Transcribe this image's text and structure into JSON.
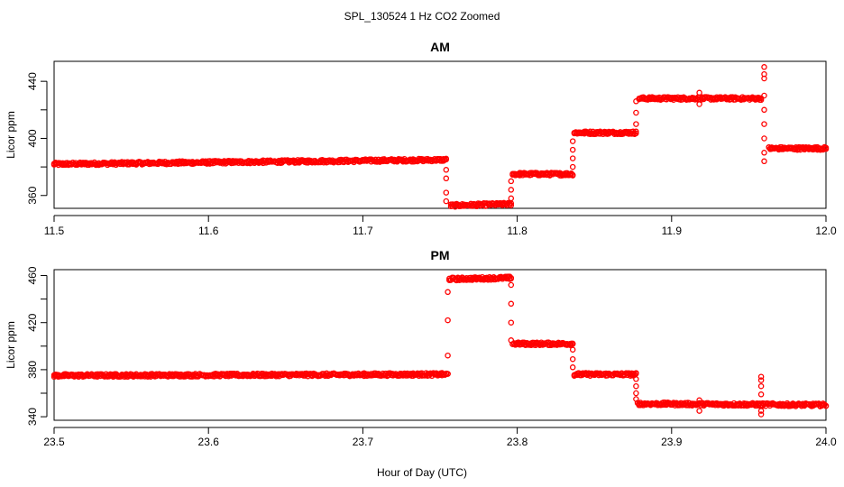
{
  "figure": {
    "title": "SPL_130524  1 Hz CO2 Zoomed",
    "xlabel": "Hour of Day (UTC)"
  },
  "chart_data": [
    {
      "type": "scatter",
      "title": "AM",
      "ylabel": "Licor ppm",
      "xlim": [
        11.5,
        12.0
      ],
      "ylim": [
        351,
        454
      ],
      "xticks": [
        "11.5",
        "11.6",
        "11.7",
        "11.8",
        "11.9",
        "12.0"
      ],
      "xtick_values": [
        11.5,
        11.6,
        11.7,
        11.8,
        11.9,
        12.0
      ],
      "yticks": [
        "360",
        "400",
        "440"
      ],
      "ytick_values": [
        360,
        400,
        440
      ],
      "marker": "open-circle",
      "color": "#ff0000",
      "levels": [
        {
          "x0": 11.5,
          "x1": 11.754,
          "y0": 382,
          "y1": 385
        },
        {
          "x0": 11.757,
          "x1": 11.796,
          "y0": 353,
          "y1": 354
        },
        {
          "x0": 11.797,
          "x1": 11.836,
          "y0": 375,
          "y1": 375
        },
        {
          "x0": 11.837,
          "x1": 11.877,
          "y0": 404,
          "y1": 404
        },
        {
          "x0": 11.879,
          "x1": 11.958,
          "y0": 428,
          "y1": 428
        },
        {
          "x0": 11.963,
          "x1": 12.0,
          "y0": 393,
          "y1": 393
        }
      ],
      "transitions": [
        {
          "x": 11.754,
          "y": [
            378,
            372,
            362,
            356
          ]
        },
        {
          "x": 11.796,
          "y": [
            358,
            364,
            370
          ]
        },
        {
          "x": 11.836,
          "y": [
            380,
            386,
            392,
            398
          ]
        },
        {
          "x": 11.877,
          "y": [
            410,
            418,
            426
          ]
        },
        {
          "x": 11.96,
          "y": [
            442,
            430,
            420,
            410,
            400,
            390,
            384
          ]
        }
      ],
      "outliers": [
        {
          "x": 11.918,
          "y": [
            432,
            424
          ]
        },
        {
          "x": 11.96,
          "y": [
            450,
            445
          ]
        }
      ]
    },
    {
      "type": "scatter",
      "title": "PM",
      "ylabel": "Licor ppm",
      "xlim": [
        23.5,
        24.0
      ],
      "ylim": [
        337,
        465
      ],
      "xticks": [
        "23.5",
        "23.6",
        "23.7",
        "23.8",
        "23.9",
        "24.0"
      ],
      "xtick_values": [
        23.5,
        23.6,
        23.7,
        23.8,
        23.9,
        24.0
      ],
      "yticks": [
        "340",
        "380",
        "420",
        "460"
      ],
      "ytick_values": [
        340,
        380,
        420,
        460
      ],
      "marker": "open-circle",
      "color": "#ff0000",
      "levels": [
        {
          "x0": 23.5,
          "x1": 23.755,
          "y0": 375,
          "y1": 376
        },
        {
          "x0": 23.756,
          "x1": 23.796,
          "y0": 457,
          "y1": 458
        },
        {
          "x0": 23.797,
          "x1": 23.836,
          "y0": 402,
          "y1": 402
        },
        {
          "x0": 23.837,
          "x1": 23.877,
          "y0": 376,
          "y1": 376
        },
        {
          "x0": 23.878,
          "x1": 24.0,
          "y0": 351,
          "y1": 350
        }
      ],
      "transitions": [
        {
          "x": 23.755,
          "y": [
            392,
            422,
            446
          ]
        },
        {
          "x": 23.796,
          "y": [
            452,
            436,
            420,
            405
          ]
        },
        {
          "x": 23.836,
          "y": [
            397,
            389,
            382
          ]
        },
        {
          "x": 23.877,
          "y": [
            372,
            366,
            360,
            355
          ]
        }
      ],
      "outliers": [
        {
          "x": 23.918,
          "y": [
            354,
            345
          ]
        },
        {
          "x": 23.958,
          "y": [
            374,
            371,
            366,
            359,
            345,
            342
          ]
        }
      ]
    }
  ]
}
